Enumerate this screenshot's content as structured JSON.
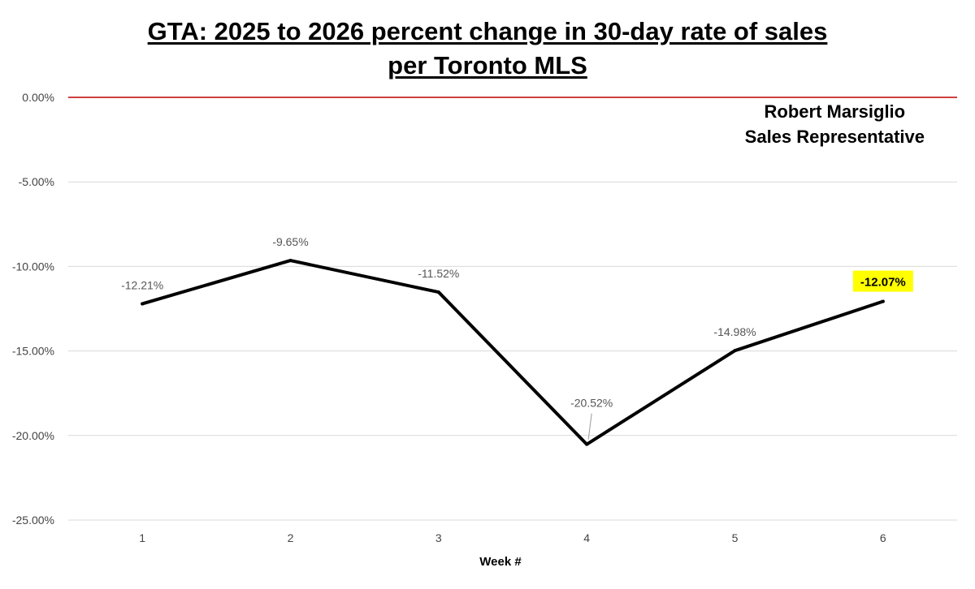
{
  "chart_data": {
    "type": "line",
    "title_line1": "GTA: 2025 to 2026 percent change in 30-day rate of sales",
    "title_line2": "per Toronto MLS",
    "xlabel": "Week #",
    "ylabel": "",
    "categories": [
      "1",
      "2",
      "3",
      "4",
      "5",
      "6"
    ],
    "series": [
      {
        "values": [
          -12.21,
          -9.65,
          -11.52,
          -20.52,
          -14.98,
          -12.07
        ]
      }
    ],
    "data_labels": [
      "-12.21%",
      "-9.65%",
      "-11.52%",
      "-20.52%",
      "-14.98%",
      "-12.07%"
    ],
    "highlighted_point_index": 5,
    "ylim": [
      -25,
      0
    ],
    "yticks": [
      0,
      -5,
      -10,
      -15,
      -20,
      -25
    ],
    "ytick_labels": [
      "0.00%",
      "-5.00%",
      "-10.00%",
      "-15.00%",
      "-20.00%",
      "-25.00%"
    ],
    "grid": true,
    "zero_line_color": "#c00000",
    "line_color": "#000000",
    "highlight_color": "#ffff00",
    "annotation": {
      "line1": "Robert Marsiglio",
      "line2": "Sales Representative"
    }
  }
}
